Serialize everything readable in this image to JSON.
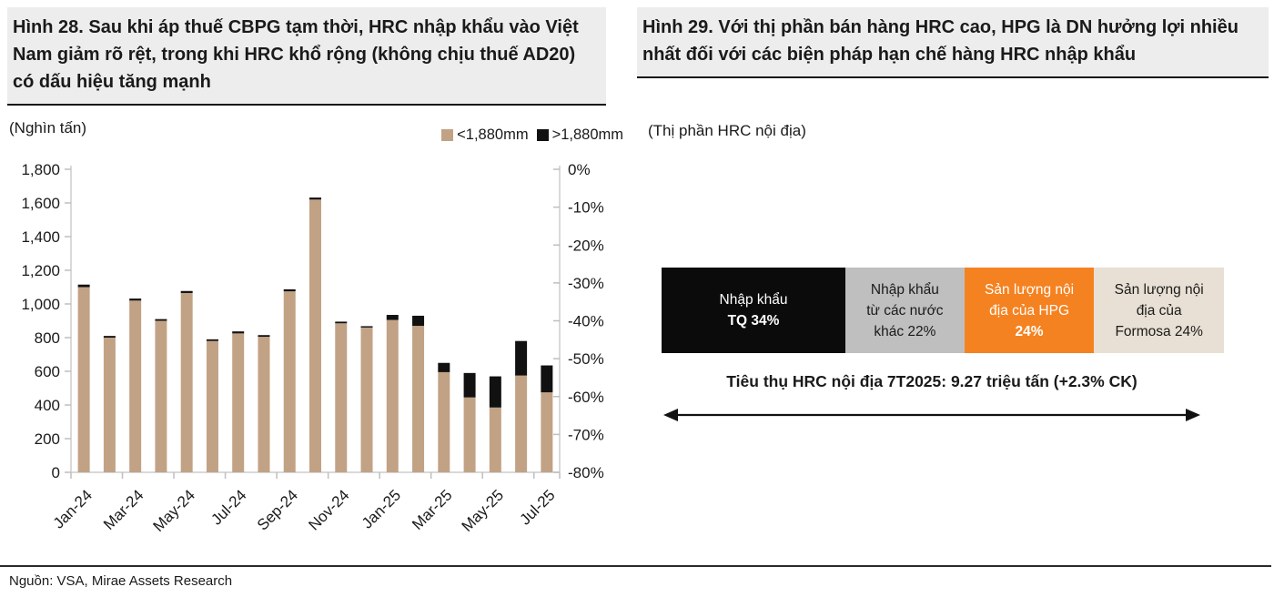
{
  "figure28": {
    "title": "Hình 28. Sau khi áp thuế CBPG tạm thời, HRC nhập khẩu vào Việt Nam giảm rõ rệt, trong khi HRC khổ rộng (không chịu thuế AD20) có dấu hiệu tăng mạnh"
  },
  "figure29": {
    "title": "Hình 29. Với thị phần bán hàng HRC cao, HPG là DN hưởng lợi nhiều nhất đối với các biện pháp hạn chế hàng HRC nhập khẩu"
  },
  "footer": {
    "source": "Nguồn: VSA, Mirae Assets Research"
  },
  "colors": {
    "bar_tan": "#C2A285",
    "bar_black": "#111111",
    "axis_line": "#D9D9D9",
    "tick_mark": "#BFBFBF",
    "title_bg": "#EDEDED"
  },
  "chart_data": [
    {
      "type": "bar",
      "stacked": true,
      "unit_label": "(Nghìn tấn)",
      "grid": false,
      "legend_position": "top-right",
      "categories": [
        "Jan-24",
        "Feb-24",
        "Mar-24",
        "Apr-24",
        "May-24",
        "Jun-24",
        "Jul-24",
        "Aug-24",
        "Sep-24",
        "Oct-24",
        "Nov-24",
        "Dec-24",
        "Jan-25",
        "Feb-25",
        "Mar-25",
        "Apr-25",
        "May-25",
        "Jun-25",
        "Jul-25"
      ],
      "x_label_every": 2,
      "series": [
        {
          "name": "<1,880mm",
          "color": "#C2A285",
          "values": [
            1100,
            800,
            1020,
            900,
            1065,
            780,
            825,
            805,
            1075,
            1620,
            885,
            860,
            905,
            870,
            595,
            445,
            385,
            575,
            475
          ]
        },
        {
          "name": ">1,880mm",
          "color": "#111111",
          "values": [
            15,
            10,
            12,
            10,
            12,
            10,
            12,
            10,
            12,
            12,
            10,
            8,
            30,
            60,
            55,
            145,
            185,
            205,
            160
          ]
        }
      ],
      "left_axis": {
        "min": 0,
        "max": 1800,
        "step": 200,
        "tick_labels": [
          "1,800",
          "1,600",
          "1,400",
          "1,200",
          "1,000",
          "800",
          "600",
          "400",
          "200",
          "0"
        ]
      },
      "right_axis": {
        "min": -80,
        "max": 0,
        "step": 10,
        "tick_labels": [
          "0%",
          "-10%",
          "-20%",
          "-30%",
          "-40%",
          "-50%",
          "-60%",
          "-70%",
          "-80%"
        ]
      }
    },
    {
      "type": "bar",
      "subtype": "share-breakdown",
      "title": "(Thị phần HRC nội địa)",
      "segments": [
        {
          "value": 34,
          "bg": "#0B0B0B",
          "fg": "#FFFFFF",
          "lines": [
            {
              "text": "Nhập khẩu",
              "bold": false
            },
            {
              "text": "TQ 34%",
              "bold": true
            }
          ]
        },
        {
          "value": 22,
          "bg": "#BFBFBF",
          "fg": "#1A1A1A",
          "lines": [
            {
              "text": "Nhập khẩu",
              "bold": false
            },
            {
              "text": "từ các nước",
              "bold": false
            },
            {
              "text": "khác 22%",
              "bold": false
            }
          ]
        },
        {
          "value": 24,
          "bg": "#F58220",
          "fg": "#FFFFFF",
          "lines": [
            {
              "text": "Sản lượng nội",
              "bold": false
            },
            {
              "text": "địa của HPG",
              "bold": false
            },
            {
              "text": "24%",
              "bold": true
            }
          ]
        },
        {
          "value": 24,
          "bg": "#E8E0D4",
          "fg": "#1A1A1A",
          "lines": [
            {
              "text": "Sản lượng nội",
              "bold": false
            },
            {
              "text": "địa của",
              "bold": false
            },
            {
              "text": "Formosa 24%",
              "bold": false
            }
          ]
        }
      ],
      "caption": "Tiêu thụ HRC nội địa 7T2025: 9.27 triệu tấn (+2.3% CK)"
    }
  ]
}
